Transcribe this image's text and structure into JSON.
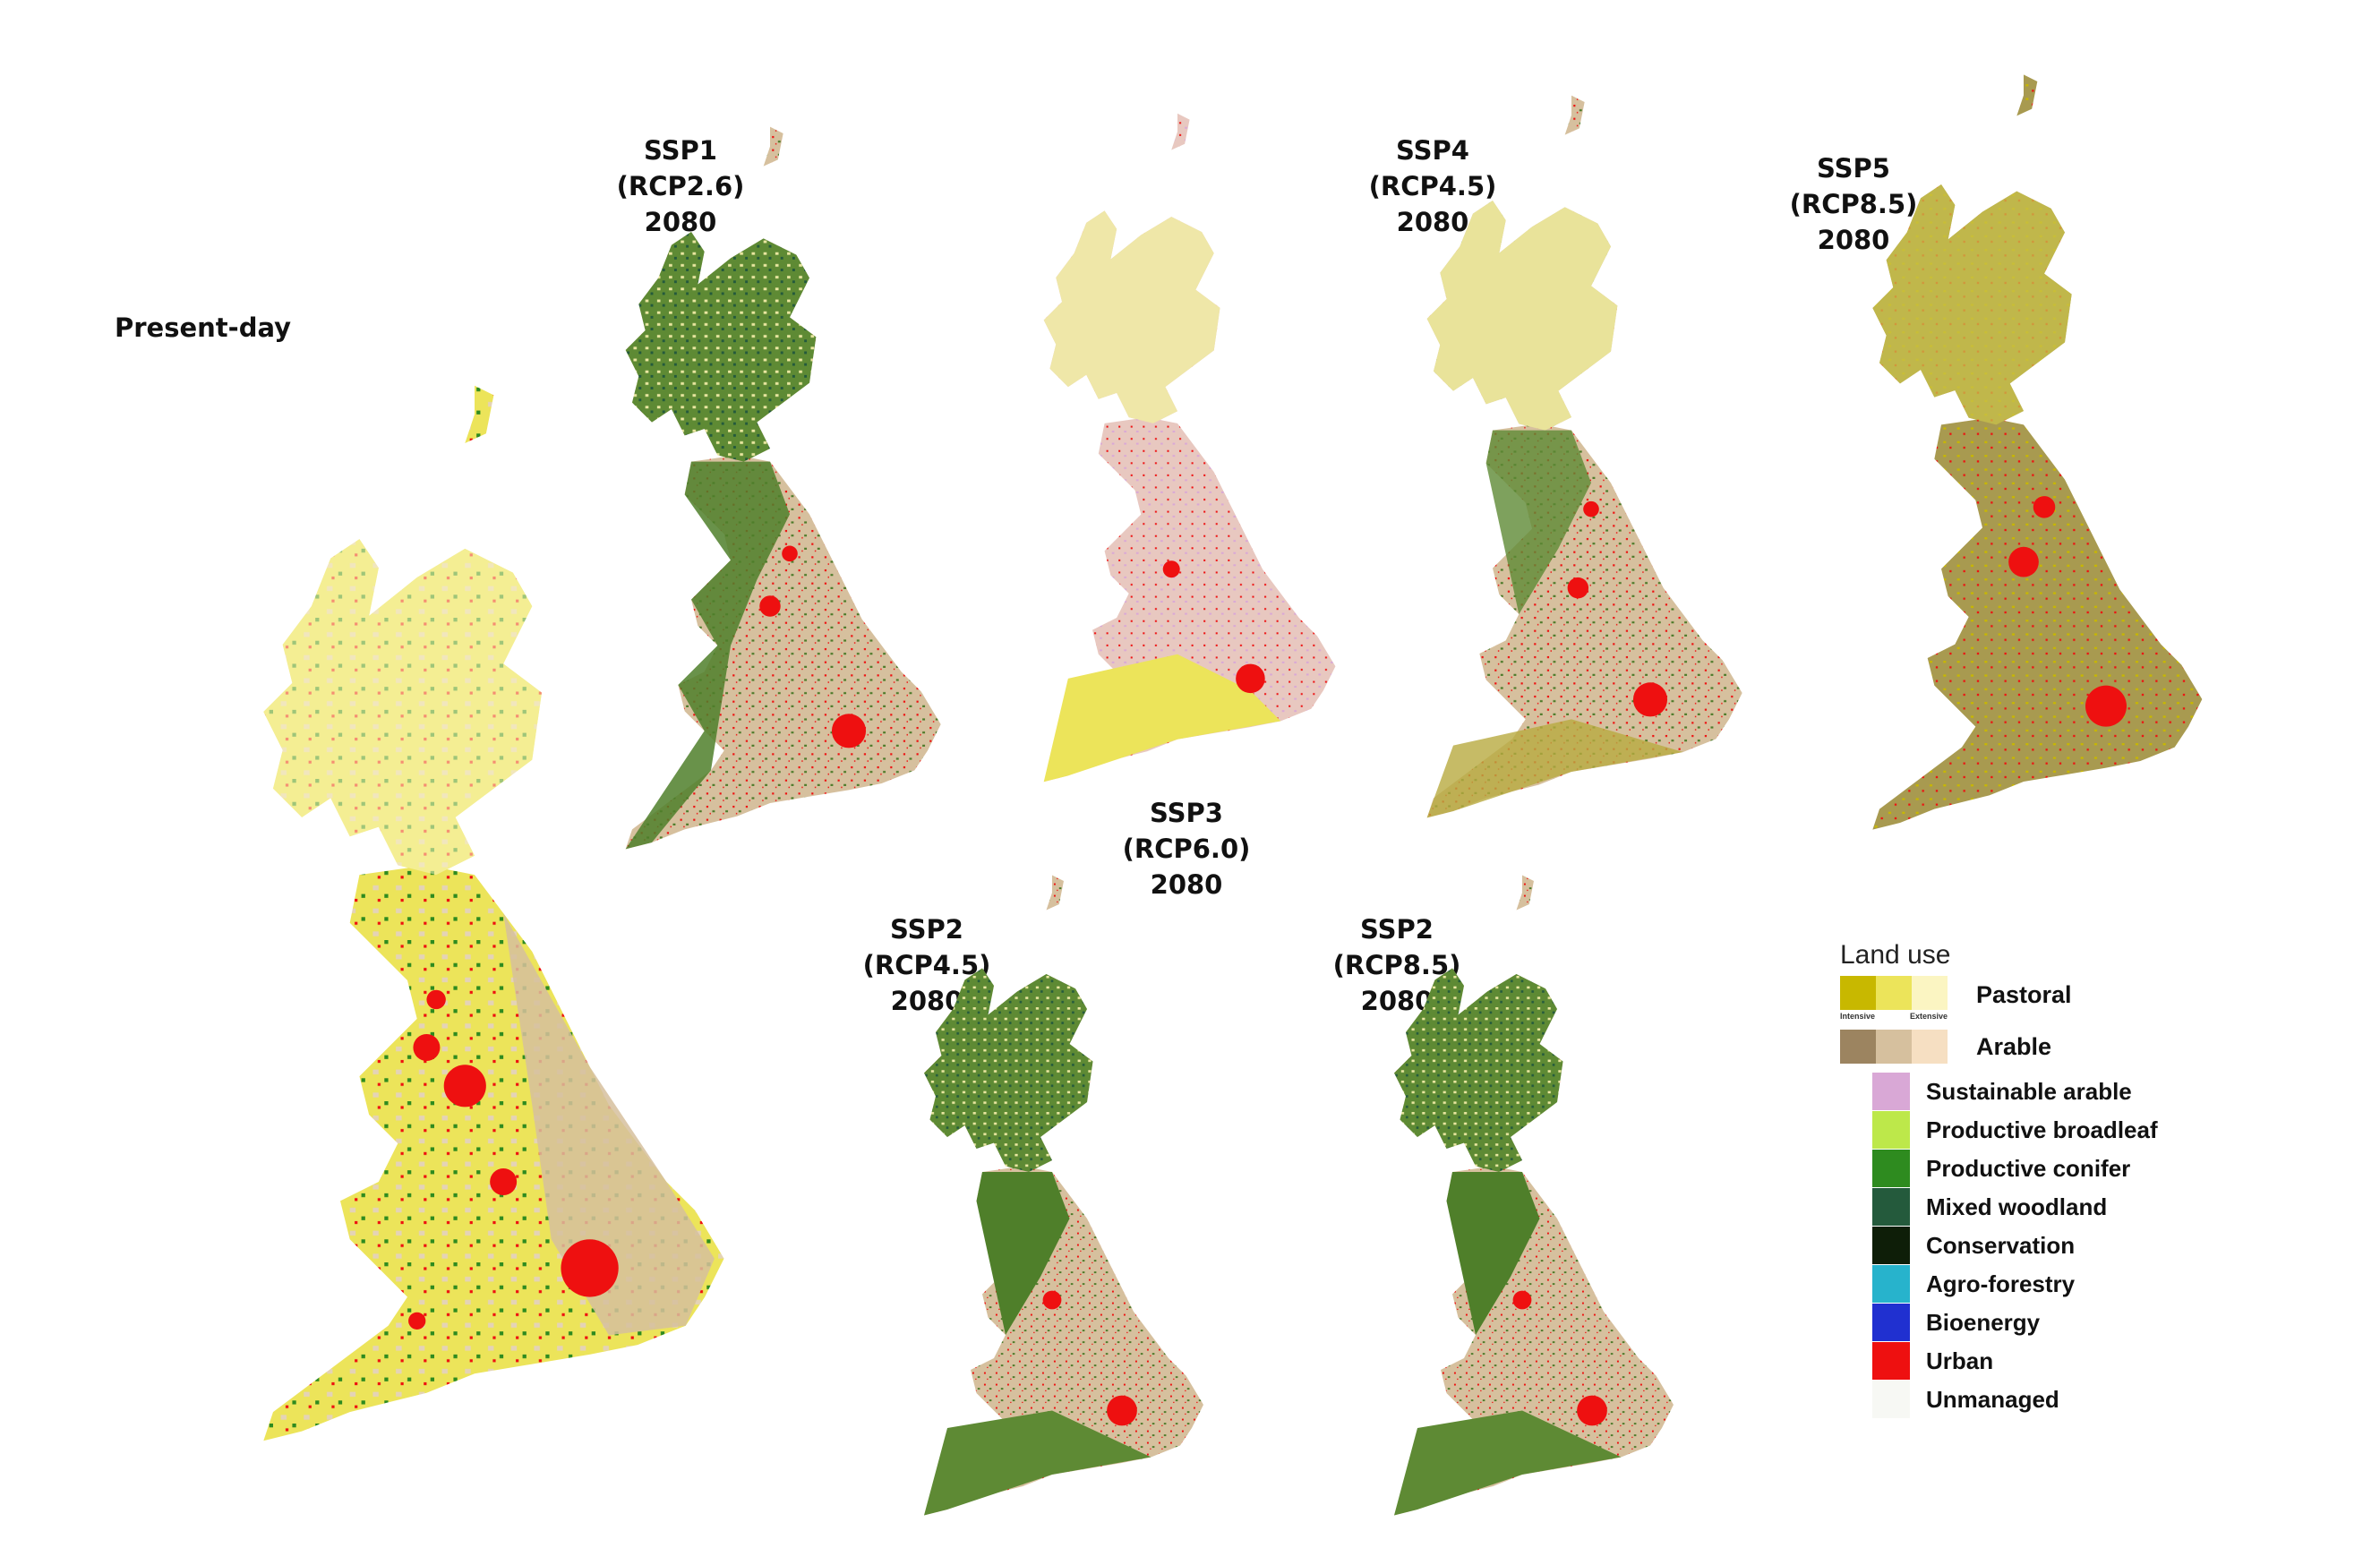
{
  "panels": [
    {
      "id": "present",
      "line1": "Present-day",
      "line2": ""
    },
    {
      "id": "ssp1",
      "line1": "SSP1 (RCP2.6)",
      "line2": "2080"
    },
    {
      "id": "ssp3",
      "line1": "SSP3 (RCP6.0)",
      "line2": "2080"
    },
    {
      "id": "ssp4",
      "line1": "SSP4 (RCP4.5)",
      "line2": "2080"
    },
    {
      "id": "ssp5",
      "line1": "SSP5 (RCP8.5)",
      "line2": "2080"
    },
    {
      "id": "ssp2a",
      "line1": "SSP2 (RCP4.5)",
      "line2": "2080"
    },
    {
      "id": "ssp2b",
      "line1": "SSP2 (RCP8.5)",
      "line2": "2080"
    }
  ],
  "legend": {
    "title": "Land use",
    "intensity_left": "Intensive",
    "intensity_right": "Extensive",
    "pastoral": {
      "label": "Pastoral",
      "colors": [
        "#c8b800",
        "#ece45a",
        "#fbf5c2"
      ]
    },
    "arable": {
      "label": "Arable",
      "colors": [
        "#9c8460",
        "#d6c09e",
        "#f6dfc2"
      ]
    },
    "items": [
      {
        "label": "Sustainable arable",
        "color": "#d9a8d6"
      },
      {
        "label": "Productive broadleaf",
        "color": "#bde84a"
      },
      {
        "label": "Productive conifer",
        "color": "#2e8b1f"
      },
      {
        "label": "Mixed woodland",
        "color": "#245a3c"
      },
      {
        "label": "Conservation",
        "color": "#0e1e08"
      },
      {
        "label": "Agro-forestry",
        "color": "#27b3cc"
      },
      {
        "label": "Bioenergy",
        "color": "#2030d0"
      },
      {
        "label": "Urban",
        "color": "#ee1010"
      },
      {
        "label": "Unmanaged",
        "color": "#f7f8f4"
      }
    ]
  }
}
